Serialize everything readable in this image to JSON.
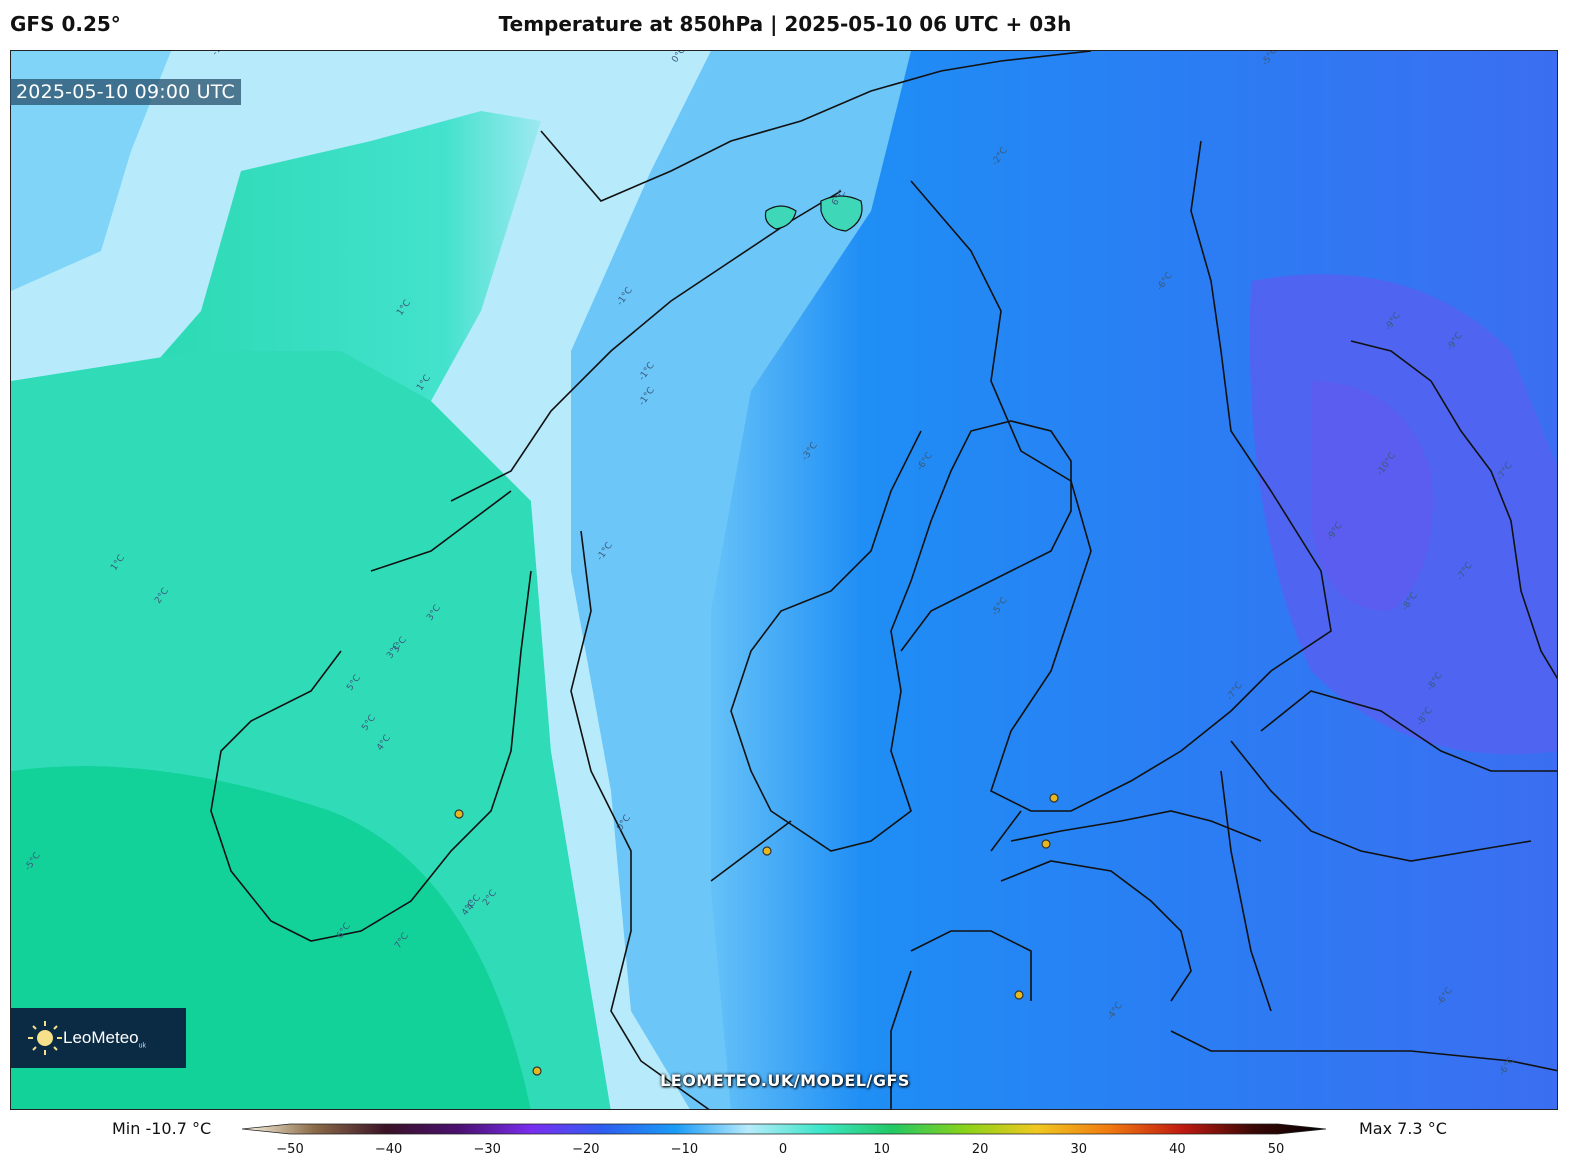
{
  "header": {
    "model": "GFS 0.25°",
    "title": "Temperature at 850hPa | 2025-05-10 06 UTC + 03h"
  },
  "map": {
    "valid_time": "2025-05-10 09:00 UTC",
    "watermark": "LEOMETEO.UK/MODEL/GFS",
    "logo": {
      "name": "LeoMeteo",
      "suffix": "uk"
    },
    "contour_labels": [
      "-1°C",
      "0°C",
      "-5°C",
      "-2°C",
      "-1°C",
      "1°C",
      "1°C",
      "-6°C",
      "6°C",
      "-3°C",
      "-1°C",
      "-1°C",
      "-9°C",
      "-9°C",
      "-10°C",
      "-7°C",
      "-8°C",
      "-7°C",
      "-9°C",
      "1°C",
      "2°C",
      "3°C",
      "3°C",
      "-1°C",
      "-5°C",
      "-6°C",
      "-7°C",
      "-8°C",
      "-8°C",
      "3°C",
      "4°C",
      "5°C",
      "0°C",
      "2°C",
      "6°C",
      "7°C",
      "4°C",
      "-4°C",
      "-6°C",
      "-6°C",
      "-5°C",
      "5°C",
      "4°C"
    ],
    "colors": {
      "very_cold": "#5b5cf0",
      "cold": "#1f86f5",
      "cool": "#34aef9",
      "near_zero": "#b7ebfb",
      "mild": "#43e2cc",
      "warm": "#10cf98",
      "coastline": "#111111",
      "city_marker": "#e6b820"
    }
  },
  "colorbar": {
    "min_label": "Min -10.7 °C",
    "max_label": "Max 7.3 °C",
    "range": [
      -50,
      50
    ],
    "ticks": [
      "−50",
      "−40",
      "−30",
      "−20",
      "−10",
      "0",
      "10",
      "20",
      "30",
      "40",
      "50"
    ],
    "stops": [
      "#fffbe8",
      "#8a6a48",
      "#3a1226",
      "#4a1070",
      "#7a2ef0",
      "#2e5ef0",
      "#1a9cf5",
      "#b7ebfb",
      "#3ee6c8",
      "#22c864",
      "#8ad21a",
      "#f0c820",
      "#f07a10",
      "#c01a10",
      "#3a0806",
      "#000000"
    ]
  }
}
